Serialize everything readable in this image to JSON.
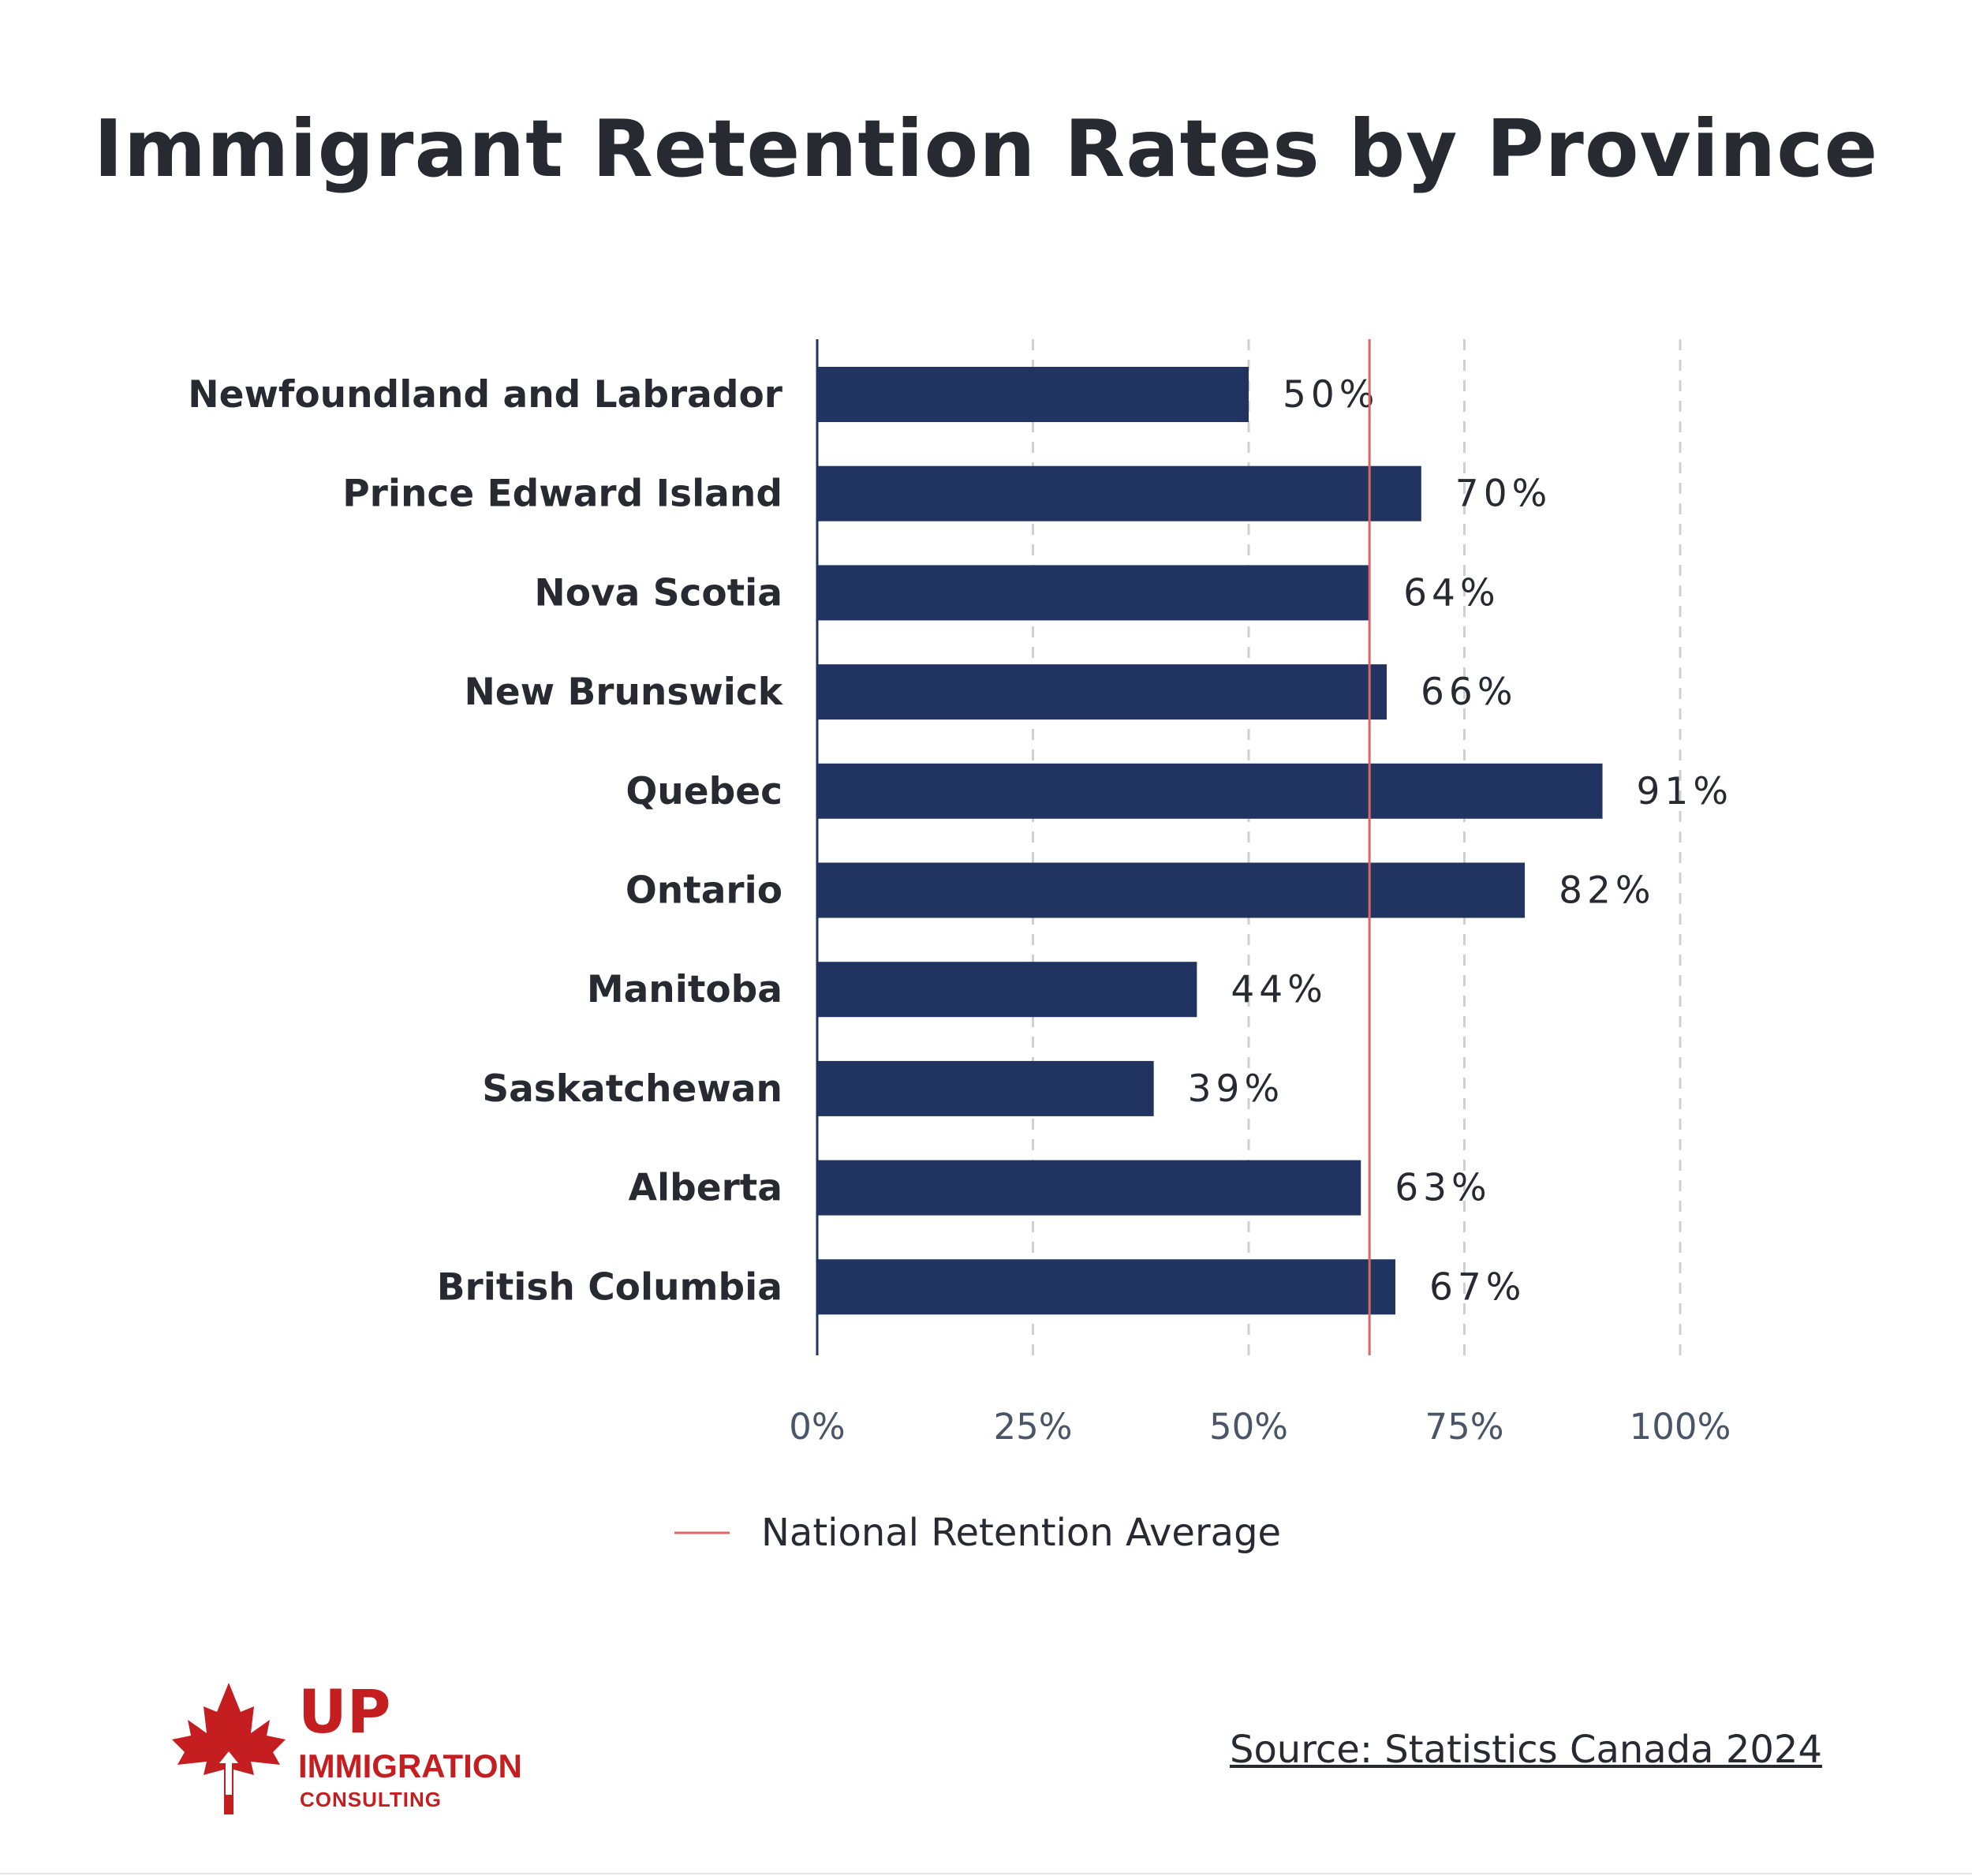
{
  "title": "Immigrant Retention Rates by Province",
  "chart_data": {
    "type": "bar",
    "orientation": "horizontal",
    "title": "Immigrant Retention Rates by Province",
    "categories": [
      "Newfoundland and Labrador",
      "Prince Edward Island",
      "Nova Scotia",
      "New Brunswick",
      "Quebec",
      "Ontario",
      "Manitoba",
      "Saskatchewan",
      "Alberta",
      "British Columbia"
    ],
    "values": [
      50,
      70,
      64,
      66,
      91,
      82,
      44,
      39,
      63,
      67
    ],
    "value_labels": [
      "50%",
      "70%",
      "64%",
      "66%",
      "91%",
      "82%",
      "44%",
      "39%",
      "63%",
      "67%"
    ],
    "xlim": [
      0,
      100
    ],
    "xticks": [
      0,
      25,
      50,
      75,
      100
    ],
    "xtick_labels": [
      "0%",
      "25%",
      "50%",
      "75%",
      "100%"
    ],
    "xgrid": "dashed",
    "reference_line": {
      "name": "National Retention Average",
      "value": 64
    },
    "legend": [
      "National Retention Average"
    ],
    "legend_position": "bottom-center",
    "bar_color": "#213461",
    "reference_color": "#e06666"
  },
  "legend": {
    "label": "National Retention Average"
  },
  "brand": {
    "line1": "UP",
    "line2": "IMMIGRATION",
    "line3": "CONSULTING",
    "color": "#c41e20"
  },
  "source": "Source: Statistics Canada 2024"
}
